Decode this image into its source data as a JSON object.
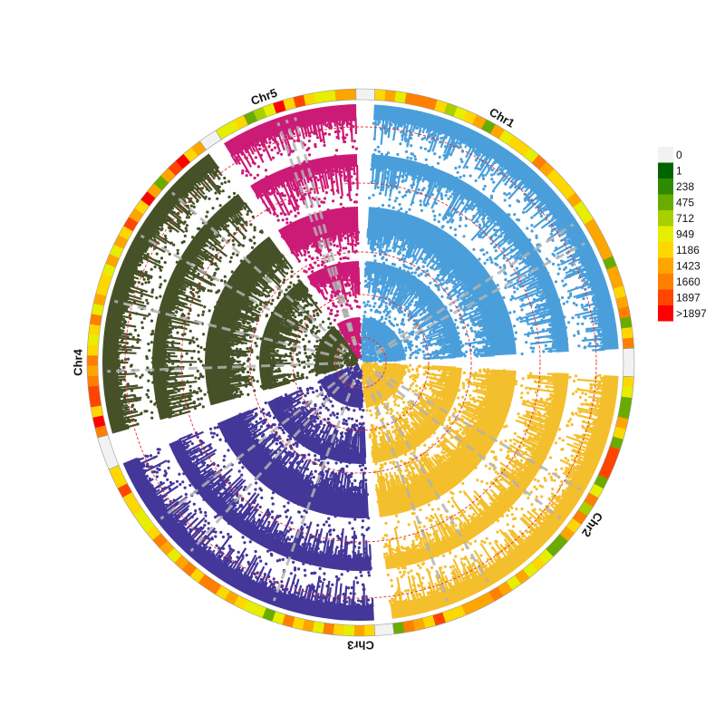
{
  "chart_data": {
    "type": "circular-manhattan",
    "chromosomes": [
      {
        "name": "Chr1",
        "color": "#4a9fdb"
      },
      {
        "name": "Chr2",
        "color": "#f4bf2d"
      },
      {
        "name": "Chr3",
        "color": "#443799"
      },
      {
        "name": "Chr4",
        "color": "#465127"
      },
      {
        "name": "Chr5",
        "color": "#cc1a77"
      }
    ],
    "threshold_line_color": "#e03030",
    "highlight_line_color": "#b3b3b3",
    "legend": {
      "entries": [
        {
          "label": "0",
          "color": "#f2f2f2"
        },
        {
          "label": "1",
          "color": "#006400"
        },
        {
          "label": "238",
          "color": "#2e8b00"
        },
        {
          "label": "475",
          "color": "#6aab00"
        },
        {
          "label": "712",
          "color": "#a8cf00"
        },
        {
          "label": "949",
          "color": "#e7ee00"
        },
        {
          "label": "1186",
          "color": "#ffd700"
        },
        {
          "label": "1423",
          "color": "#ffa500"
        },
        {
          "label": "1660",
          "color": "#ff7f00"
        },
        {
          "label": "1897",
          "color": "#ff4500"
        },
        {
          "label": ">1897",
          "color": "#ff0000"
        }
      ]
    }
  }
}
